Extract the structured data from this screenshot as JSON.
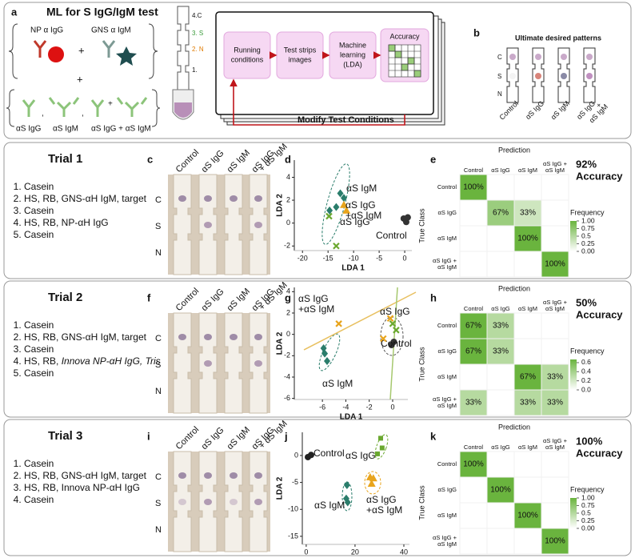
{
  "panel_a": {
    "letter": "a",
    "title": "ML for S IgG/IgM test",
    "reagents": [
      "NP α IgG",
      "GNS α IgM"
    ],
    "plus": "+",
    "comma": ",",
    "targets": [
      "αS IgG",
      "αS IgM",
      "αS IgG + αS IgM"
    ],
    "strip_labels": [
      "4.C",
      "3. S",
      "2. N",
      "1."
    ],
    "flow": [
      [
        "Running",
        "conditions"
      ],
      [
        "Test strips",
        "images"
      ],
      [
        "Machine",
        "learning",
        "(LDA)"
      ],
      [
        "Accuracy"
      ]
    ],
    "feedback": "Modify Test Conditions"
  },
  "panel_b": {
    "letter": "b",
    "title": "Ultimate desired patterns",
    "lines": [
      "C",
      "S",
      "N"
    ],
    "samples": [
      [
        "Control"
      ],
      [
        "αS IgG"
      ],
      [
        "αS IgM"
      ],
      [
        "αS IgG",
        "+",
        "αS IgM"
      ]
    ]
  },
  "trials": [
    {
      "title": "Trial 1",
      "protocol": [
        "Casein",
        "HS, RB, GNS-αH IgM, target",
        "Casein",
        "HS, RB, NP-αH IgG",
        "Casein"
      ],
      "image": {
        "letter": "c",
        "columns": [
          [
            "Control"
          ],
          [
            "αS IgG"
          ],
          [
            "αS IgM"
          ],
          [
            "αS IgG",
            "+ αS IgM"
          ]
        ],
        "rows": [
          "C",
          "S",
          "N"
        ]
      },
      "lda": {
        "letter": "d",
        "xlabel": "LDA 1",
        "ylabel": "LDA 2",
        "xlim": [
          -21.6,
          1.4
        ],
        "ylim": [
          -2.4,
          5.5
        ],
        "xticks": [
          -20,
          -15,
          -10,
          -5,
          0
        ],
        "yticks": [
          -2,
          0,
          2,
          4
        ],
        "series": [
          {
            "label": [
              "Control"
            ],
            "color": "#333333",
            "marker": "circle",
            "x": [
              -0.2,
              0.3,
              0.6
            ],
            "y": [
              0.4,
              0.1,
              0.5
            ]
          },
          {
            "label": [
              "αS IgG"
            ],
            "color": "#6aa82f",
            "marker": "x",
            "x": [
              -14.8,
              -13.4
            ],
            "y": [
              0.6,
              -2.0
            ]
          },
          {
            "label": [
              "αS IgM"
            ],
            "color": "#2a7d6b",
            "marker": "diamond",
            "x": [
              -12.6,
              -13.4,
              -11.9,
              -14.7
            ],
            "y": [
              2.6,
              1.4,
              2.2,
              1.1
            ]
          },
          {
            "label": [
              "αS IgG",
              "+αS IgM"
            ],
            "color": "#e8a41c",
            "marker": "triangle",
            "x": [
              -11.9,
              -11.4
            ],
            "y": [
              1.6,
              1.1
            ]
          }
        ]
      },
      "matrix": {
        "letter": "e",
        "title": "Prediction",
        "ylabel": "True Class",
        "classes": [
          [
            "Control"
          ],
          [
            "αS IgG"
          ],
          [
            "αS IgM"
          ],
          [
            "αS IgG +",
            "αS IgM"
          ]
        ],
        "cells": [
          [
            {
              "value": 1,
              "label": "100%"
            },
            null,
            null,
            null
          ],
          [
            null,
            {
              "value": 0.67,
              "label": "67%"
            },
            {
              "value": 0.33,
              "label": "33%"
            },
            null
          ],
          [
            null,
            null,
            {
              "value": 1,
              "label": "100%"
            },
            null
          ],
          [
            null,
            null,
            null,
            {
              "value": 1,
              "label": "100%"
            }
          ]
        ],
        "accuracy": [
          "92%",
          "Accuracy"
        ],
        "colorbar": {
          "title": "Frequency",
          "lim": [
            0,
            1
          ],
          "ticks": [
            {
              "value": 1,
              "label": "1.00"
            },
            0.75,
            0.5,
            0.25,
            {
              "value": 0,
              "label": "0.00"
            }
          ]
        }
      }
    },
    {
      "title": "Trial 2",
      "protocol": [
        "Casein",
        "HS, RB, GNS-αH IgM, target",
        "Casein",
        {
          "plain": "HS, RB,",
          "italic": "Innova NP-αH IgG, Tris"
        },
        "Casein"
      ],
      "image": {
        "letter": "f",
        "columns": [
          [
            "Control"
          ],
          [
            "αS IgG"
          ],
          [
            "αS IgM"
          ],
          [
            "αS IgG",
            "+ αS IgM"
          ]
        ],
        "rows": [
          "C",
          "S",
          "N"
        ]
      },
      "lda": {
        "letter": "g",
        "xlabel": "LDA 1",
        "ylabel": "LDA 2",
        "xlim": [
          -8.4,
          1.3
        ],
        "ylim": [
          -6.1,
          4.4
        ],
        "xticks": [
          -6,
          -4,
          -2,
          0
        ],
        "yticks": [
          -6,
          -4,
          -2,
          0,
          2,
          4
        ],
        "series": [
          {
            "label": [
              "Control"
            ],
            "color": "#333333",
            "marker": "circle",
            "x": [
              -0.1,
              0.1
            ],
            "y": [
              -1.0,
              -0.7
            ]
          },
          {
            "label": [
              "αS IgG"
            ],
            "color": "#6aa82f",
            "marker": "x",
            "x": [
              0.0,
              0.3
            ],
            "y": [
              1.0,
              0.4
            ]
          },
          {
            "label": [
              "αS IgM"
            ],
            "color": "#2a7d6b",
            "marker": "diamond",
            "x": [
              -5.9,
              -5.8,
              -5.6
            ],
            "y": [
              -1.3,
              -1.8,
              -2.5
            ]
          },
          {
            "label": [
              "αS IgG",
              "+αS IgM"
            ],
            "color": "#e8a41c",
            "marker": "x",
            "x": [
              -4.6,
              -0.8,
              -0.2
            ],
            "y": [
              1.0,
              -0.4,
              1.5
            ]
          }
        ]
      },
      "matrix": {
        "letter": "h",
        "title": "Prediction",
        "ylabel": "True Class",
        "classes": [
          [
            "Control"
          ],
          [
            "αS IgG"
          ],
          [
            "αS IgM"
          ],
          [
            "αS IgG +",
            "αS IgM"
          ]
        ],
        "cells": [
          [
            {
              "value": 0.67,
              "label": "67%"
            },
            {
              "value": 0.33,
              "label": "33%"
            },
            null,
            null
          ],
          [
            {
              "value": 0.67,
              "label": "67%"
            },
            {
              "value": 0.33,
              "label": "33%"
            },
            null,
            null
          ],
          [
            null,
            null,
            {
              "value": 0.67,
              "label": "67%"
            },
            {
              "value": 0.33,
              "label": "33%"
            }
          ],
          [
            {
              "value": 0.33,
              "label": "33%"
            },
            null,
            {
              "value": 0.33,
              "label": "33%"
            },
            {
              "value": 0.33,
              "label": "33%"
            }
          ]
        ],
        "accuracy": [
          "50%",
          "Accuracy"
        ],
        "colorbar": {
          "title": "Frequency",
          "lim": [
            0,
            0.67
          ],
          "ticks": [
            0.6,
            0.4,
            0.2,
            {
              "value": 0,
              "label": "0.0"
            }
          ]
        }
      }
    },
    {
      "title": "Trial 3",
      "protocol": [
        "Casein",
        "HS, RB, GNS-αH IgM, target",
        "HS, RB, Innova NP-αH IgG",
        "Casein"
      ],
      "image": {
        "letter": "i",
        "columns": [
          [
            "Control"
          ],
          [
            "αS IgG"
          ],
          [
            "αS IgM"
          ],
          [
            "αS IgG",
            "+ αS IgM"
          ]
        ],
        "rows": [
          "C",
          "S",
          "N"
        ]
      },
      "lda": {
        "letter": "j",
        "xlabel": "LDA 1",
        "ylabel": "LDA 2",
        "xlim": [
          -1.6,
          42.3
        ],
        "ylim": [
          -16.5,
          4.3
        ],
        "xticks": [
          0,
          20,
          40
        ],
        "yticks": [
          -15,
          -10,
          -5,
          0
        ],
        "series": [
          {
            "label": [
              "Control"
            ],
            "color": "#222222",
            "marker": "circle",
            "x": [
              0.7,
              2.0
            ],
            "y": [
              -0.3,
              0.1
            ]
          },
          {
            "label": [
              "αS IgG"
            ],
            "color": "#6aa82f",
            "marker": "square",
            "x": [
              30.5,
              31.1,
              29.2
            ],
            "y": [
              3.2,
              1.4,
              0.3
            ]
          },
          {
            "label": [
              "αS IgM"
            ],
            "color": "#2a7d6b",
            "marker": "diamond",
            "x": [
              16.7,
              16.4,
              17.0
            ],
            "y": [
              -5.5,
              -8.0,
              -8.7
            ]
          },
          {
            "label": [
              "αS IgG",
              "+αS IgM"
            ],
            "color": "#e8a41c",
            "marker": "triangle",
            "x": [
              26.2,
              27.5,
              26.8
            ],
            "y": [
              -4.0,
              -4.2,
              -5.2
            ]
          }
        ]
      },
      "matrix": {
        "letter": "k",
        "title": "Prediction",
        "ylabel": "True Class",
        "classes": [
          [
            "Control"
          ],
          [
            "αS IgG"
          ],
          [
            "αS IgM"
          ],
          [
            "αS IgG +",
            "αS IgM"
          ]
        ],
        "cells": [
          [
            {
              "value": 1,
              "label": "100%"
            },
            null,
            null,
            null
          ],
          [
            null,
            {
              "value": 1,
              "label": "100%"
            },
            null,
            null
          ],
          [
            null,
            null,
            {
              "value": 1,
              "label": "100%"
            },
            null
          ],
          [
            null,
            null,
            null,
            {
              "value": 1,
              "label": "100%"
            }
          ]
        ],
        "accuracy": [
          "100%",
          "Accuracy"
        ],
        "colorbar": {
          "title": "Frequency",
          "lim": [
            0,
            1
          ],
          "ticks": [
            {
              "value": 1,
              "label": "1.00"
            },
            0.75,
            0.5,
            0.25,
            {
              "value": 0,
              "label": "0.00"
            }
          ]
        }
      }
    }
  ]
}
